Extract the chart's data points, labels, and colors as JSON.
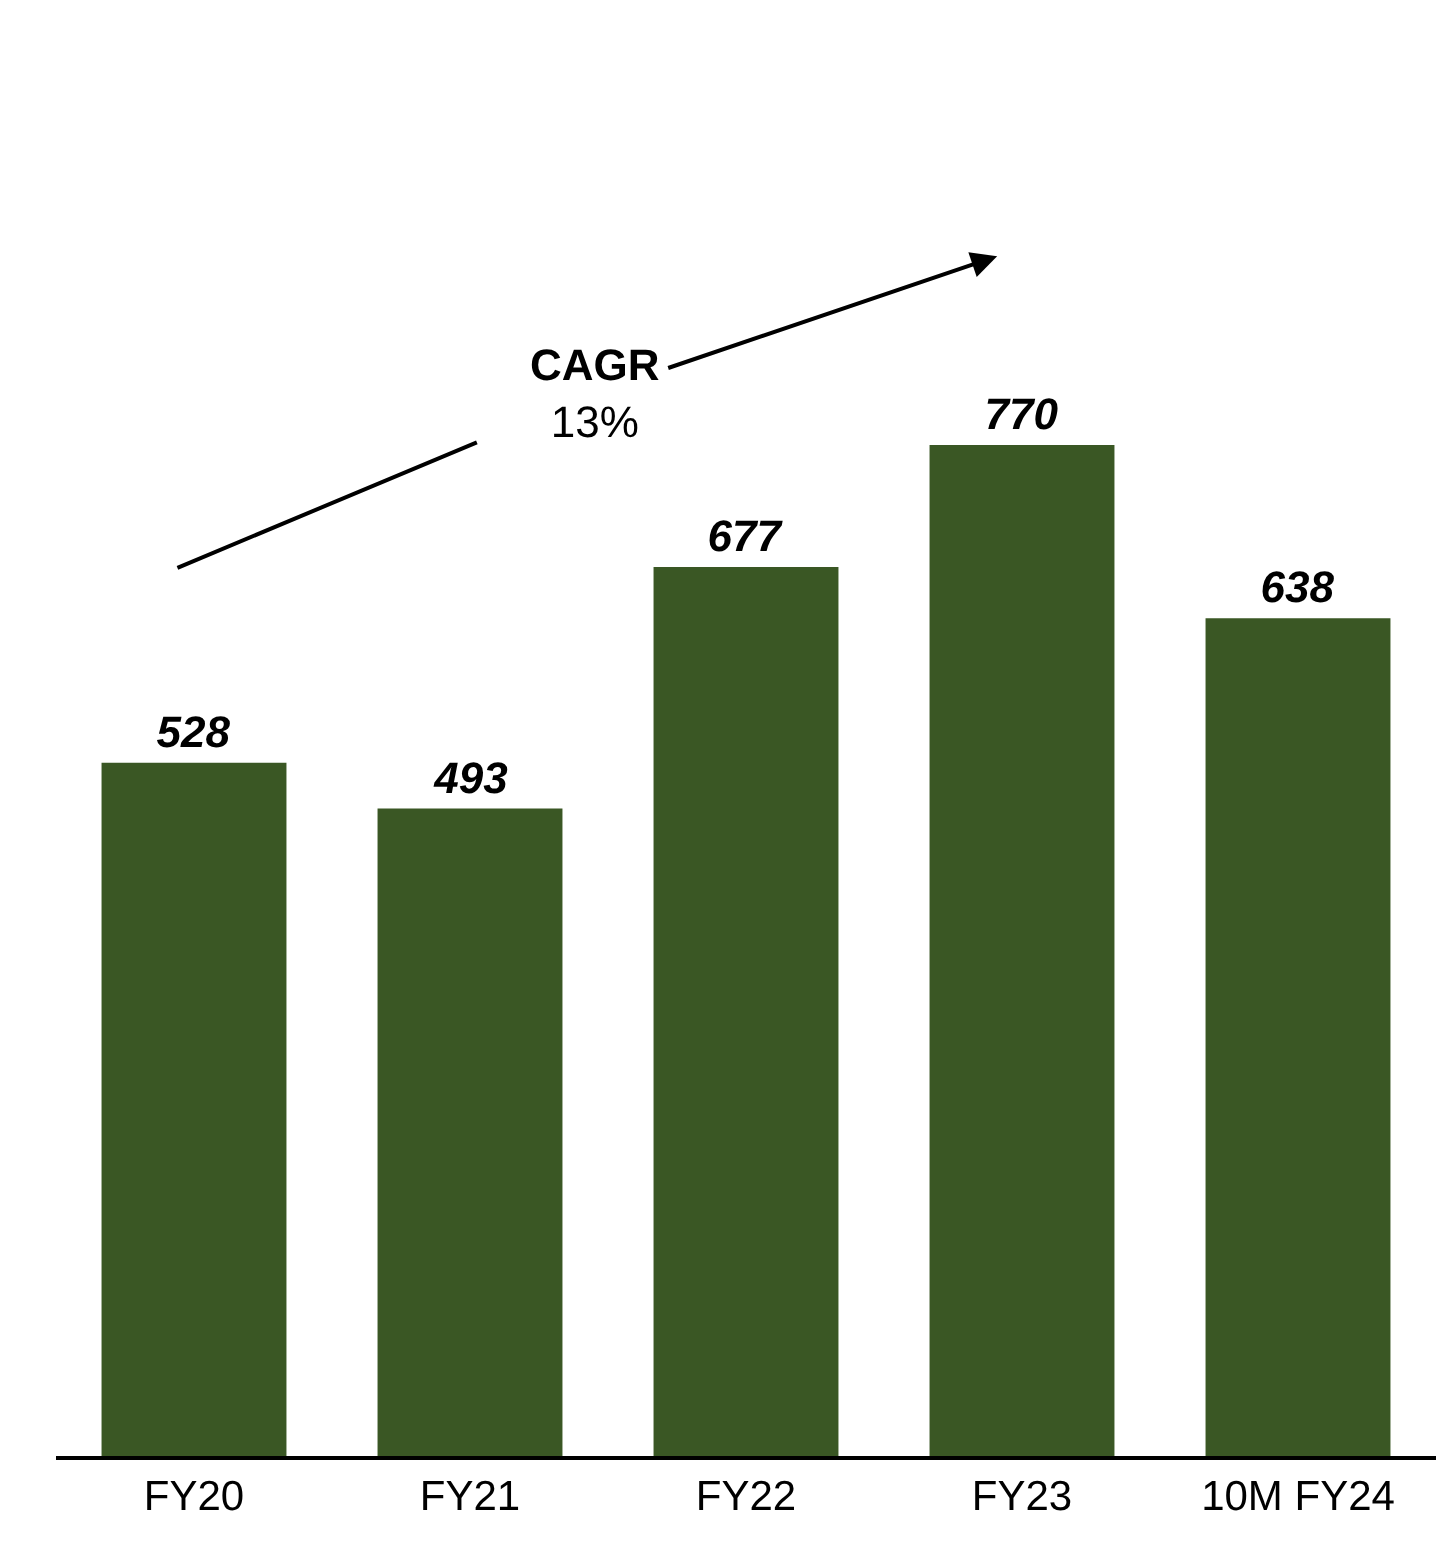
{
  "chart_data": {
    "type": "bar",
    "categories": [
      "FY20",
      "FY21",
      "FY22",
      "FY23",
      "10M FY24"
    ],
    "values": [
      528,
      493,
      677,
      770,
      638
    ],
    "color": "#3a5724",
    "data_labels": true,
    "annotations": [
      "CAGR\n13%"
    ]
  }
}
